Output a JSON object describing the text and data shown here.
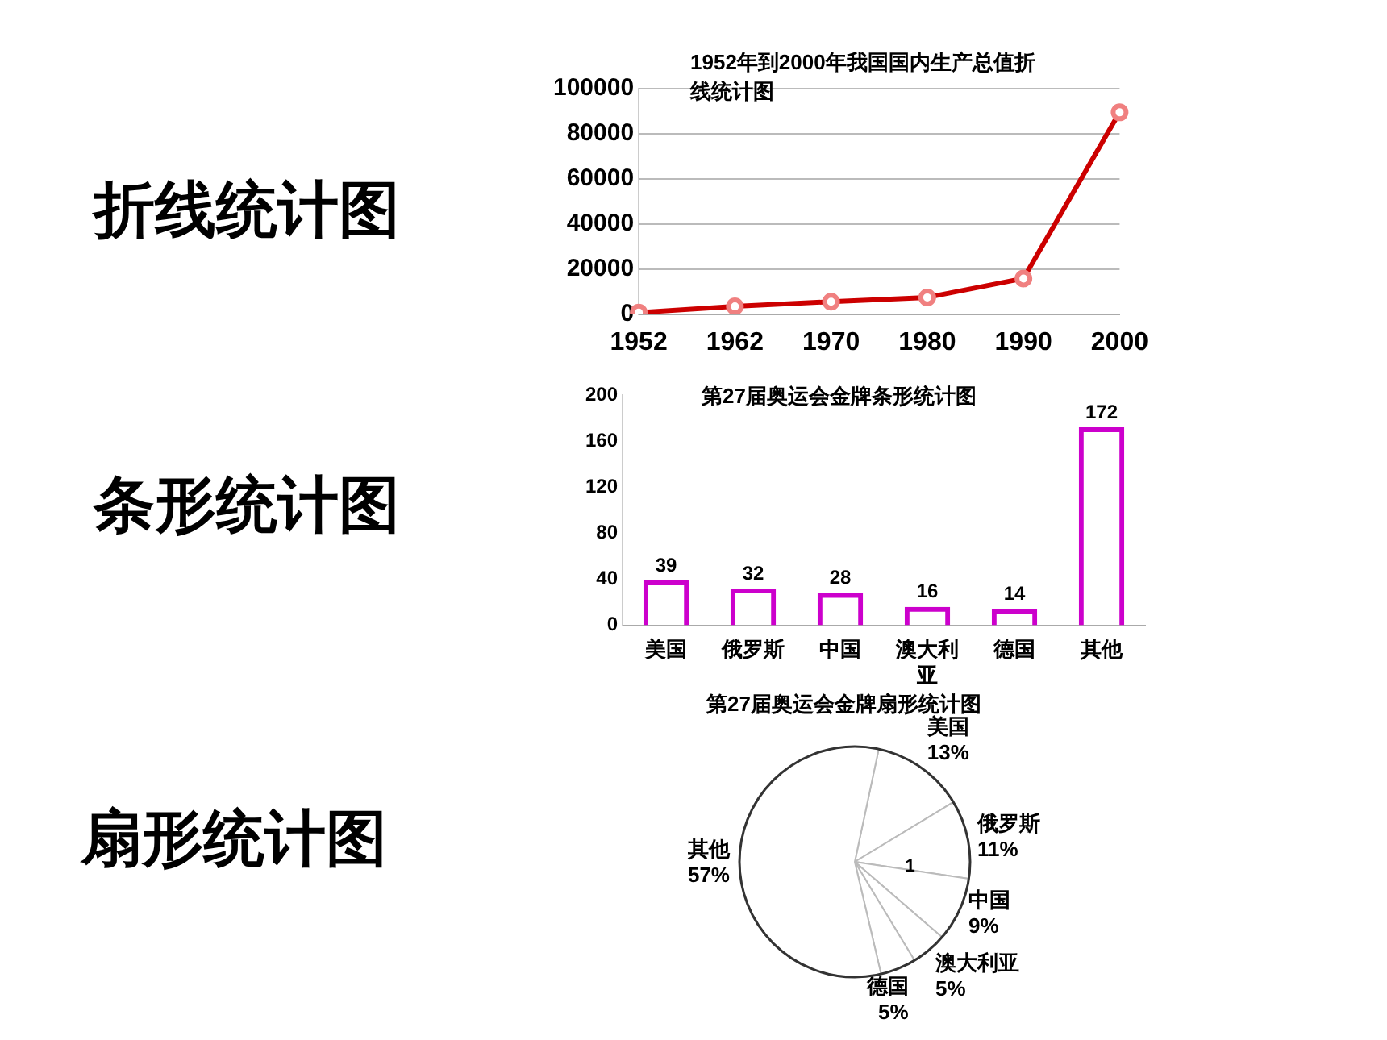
{
  "chart_data": [
    {
      "type": "line",
      "title": "1952年到2000年我国国内生产总值折线统计图",
      "subtitle": "折线统计图",
      "categories": [
        "1952",
        "1962",
        "1970",
        "1980",
        "1990",
        "2000"
      ],
      "series": [
        {
          "color": "#cc0000",
          "values": [
            700,
            3400,
            5500,
            7400,
            15800,
            89500
          ]
        }
      ],
      "ylim": [
        0,
        100000
      ],
      "yticks": [
        0,
        20000,
        40000,
        60000,
        80000,
        100000
      ],
      "grid": "y",
      "legend": false,
      "marker": "circle",
      "line_style": "solid"
    },
    {
      "type": "bar",
      "title": "第27届奥运会金牌条形统计图",
      "subtitle": "条形统计图",
      "categories": [
        "美国",
        "俄罗斯",
        "中国",
        "澳大利亚",
        "德国",
        "其他"
      ],
      "values": [
        39,
        32,
        28,
        16,
        14,
        172
      ],
      "color": "#cc00cc",
      "ylim": [
        0,
        200
      ],
      "yticks": [
        0,
        40,
        80,
        120,
        160,
        200
      ],
      "grid": false,
      "legend": false,
      "data_labels": true
    },
    {
      "type": "pie",
      "title": "第27届奥运会金牌扇形统计图",
      "subtitle": "扇形统计图",
      "categories": [
        "美国",
        "俄罗斯",
        "中国",
        "澳大利亚",
        "德国",
        "其他"
      ],
      "values": [
        13,
        11,
        9,
        5,
        5,
        57
      ],
      "value_labels": [
        "13%",
        "11%",
        "9%",
        "5%",
        "5%",
        "57%"
      ],
      "colors": [
        "#ffffff",
        "#ffffff",
        "#ffffff",
        "#ffffff",
        "#ffffff",
        "#ffffff"
      ],
      "legend": false,
      "annotations": [
        "1"
      ]
    }
  ]
}
